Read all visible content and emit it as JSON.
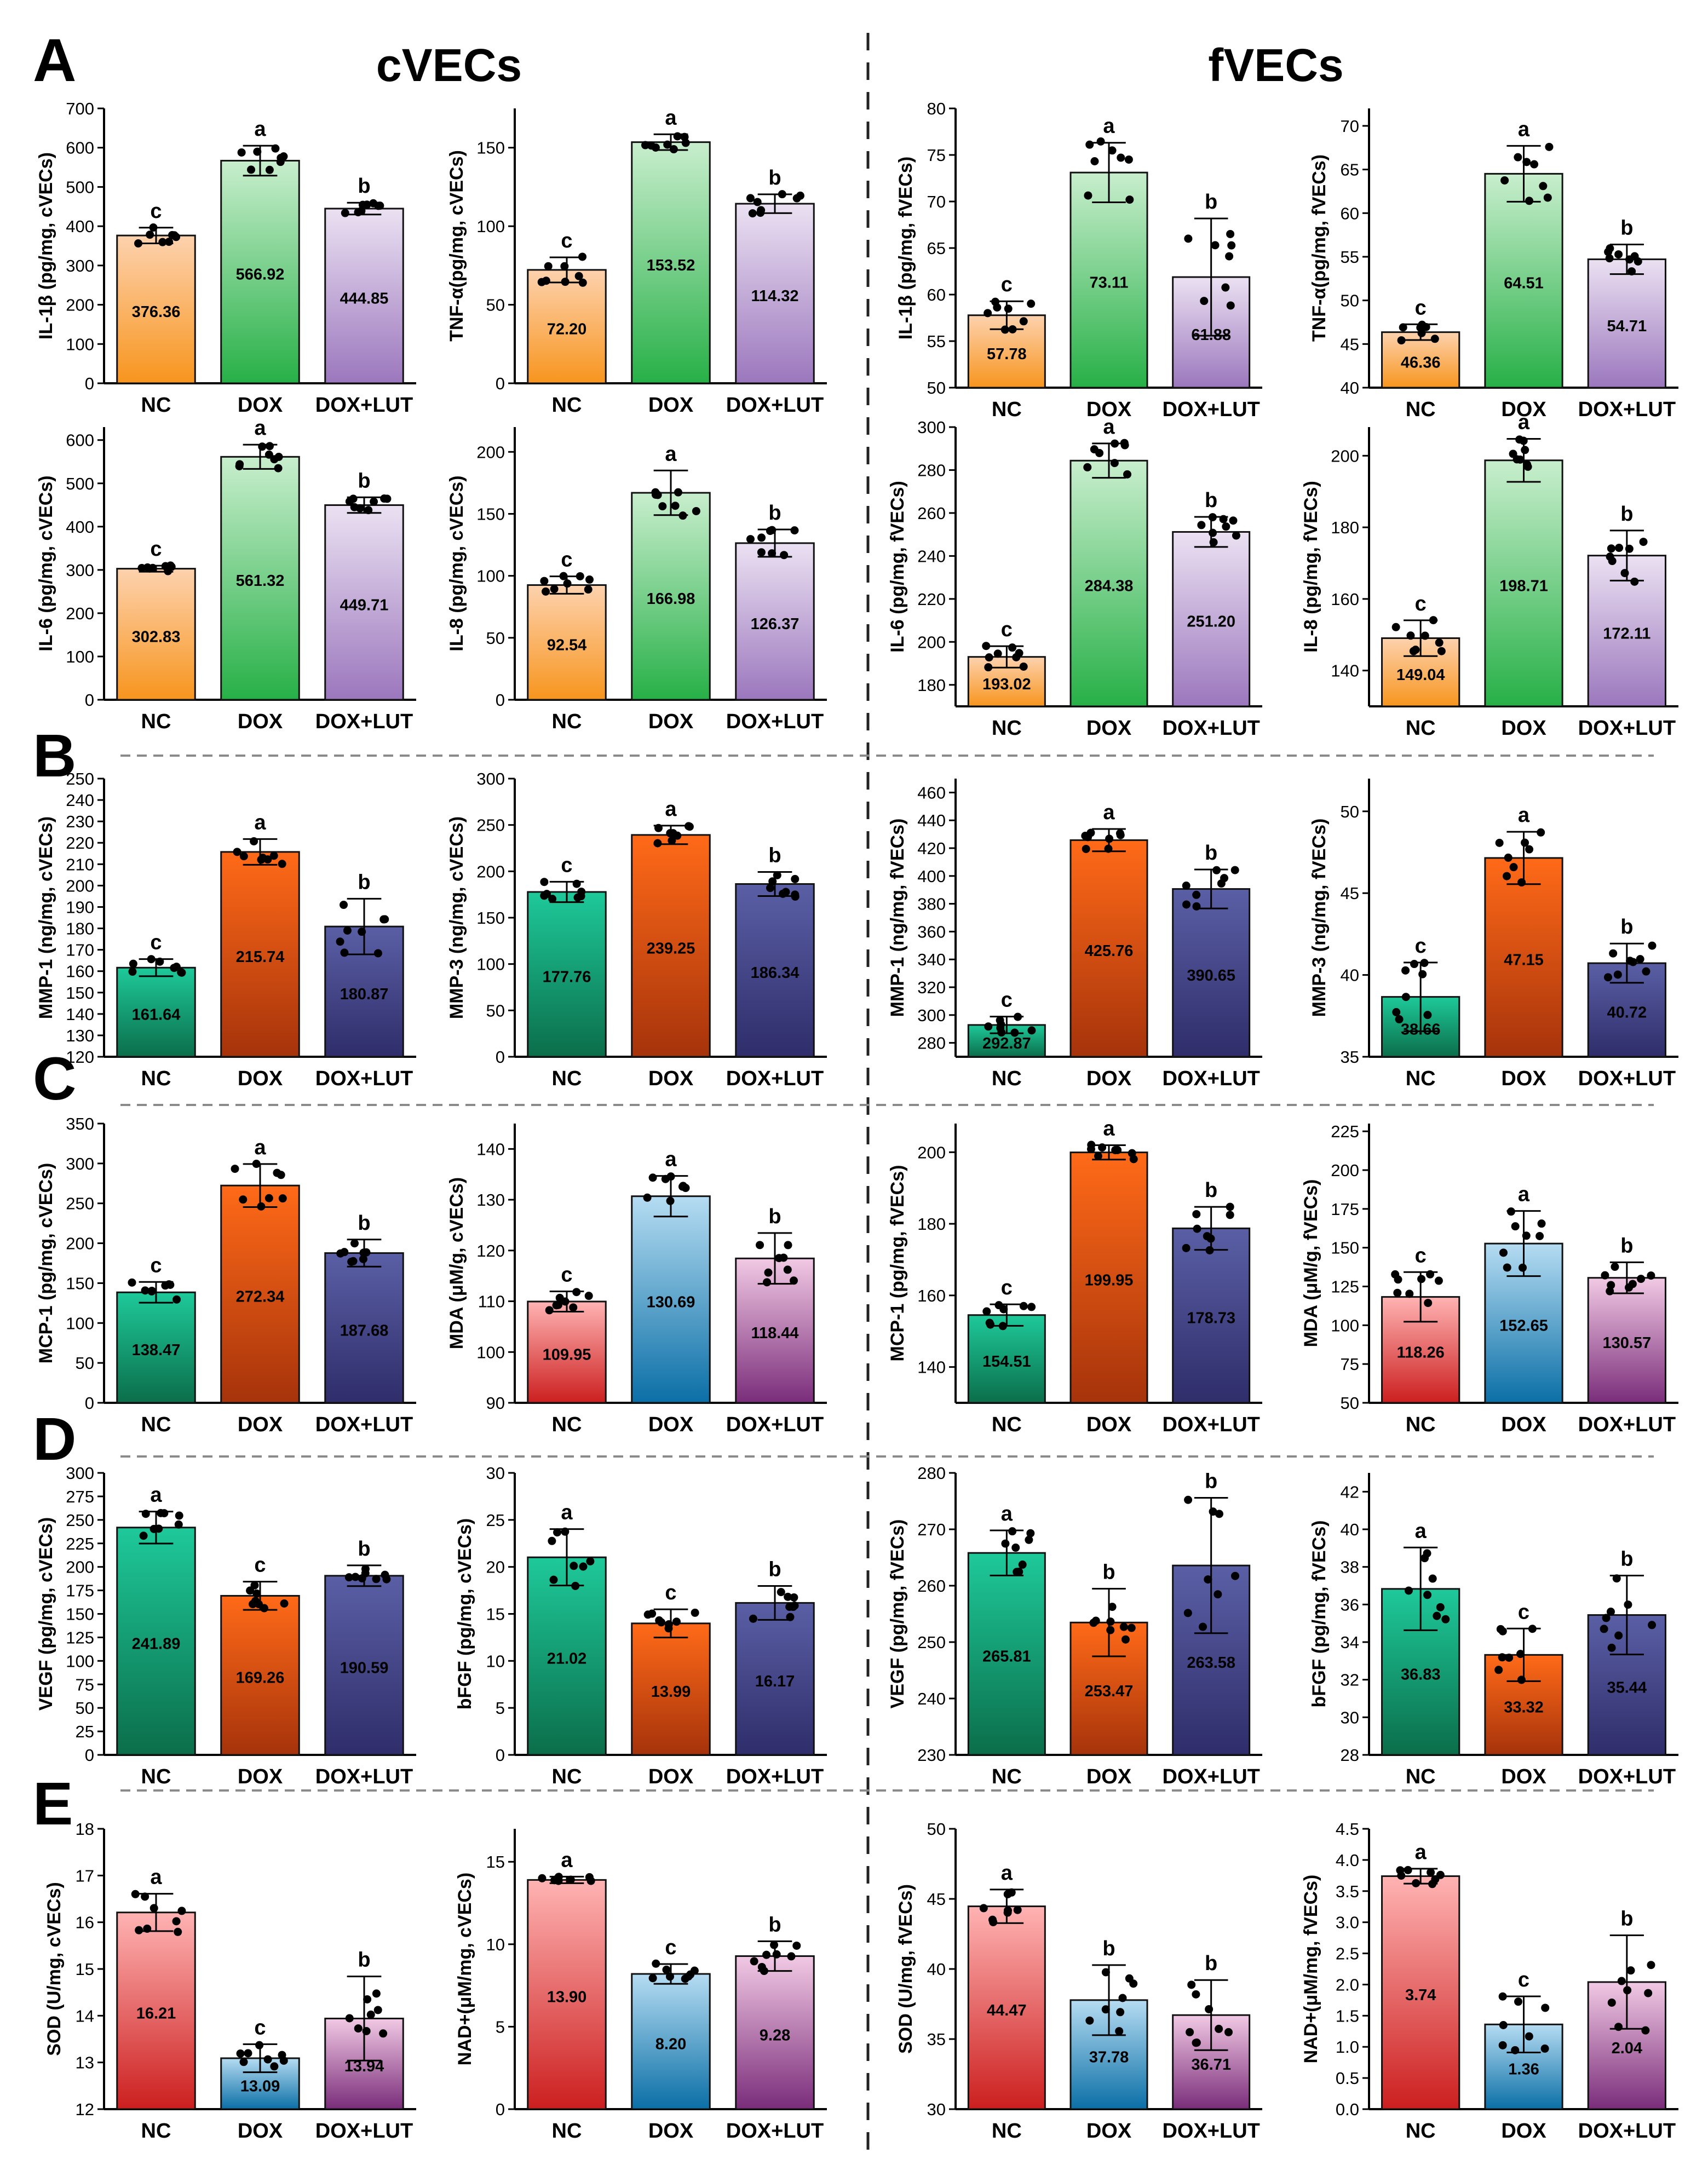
{
  "figure": {
    "sections": [
      "A",
      "B",
      "C",
      "D",
      "E"
    ],
    "groups": [
      "cVECs",
      "fVECs"
    ]
  },
  "colors": {
    "orange_light": "#fdd2ae",
    "orange": "#f7951e",
    "green_light": "#c8eecd",
    "green": "#27b047",
    "purple_light": "#ebe1f2",
    "purple": "#9b77bd",
    "teal_light": "#1ec99a",
    "teal": "#0b6e4a",
    "rust_light": "#ff6a18",
    "rust": "#a6330b",
    "navy_light": "#5a5fa5",
    "navy": "#2f2d6a",
    "pink_light": "#ffb3b3",
    "pink": "#cc1f1f",
    "blue_light": "#b5dcf2",
    "blue": "#0b6fa6",
    "mauve_light": "#f1c9e4",
    "mauve": "#7a2d7a"
  },
  "chart_data": [
    {
      "id": "A1",
      "type": "bar",
      "group": "cVECs",
      "ylabel": "IL-1β (pg/mg, cVECs)",
      "ylim": [
        0,
        700
      ],
      "ticks": [
        0,
        100,
        200,
        300,
        400,
        500,
        600,
        700
      ],
      "categories": [
        "NC",
        "DOX",
        "DOX+LUT"
      ],
      "values": [
        376.36,
        566.92,
        444.85
      ],
      "labels": [
        "376.36",
        "566.92",
        "444.85"
      ],
      "errors": [
        20,
        38,
        15
      ],
      "letters": [
        "c",
        "a",
        "b"
      ],
      "palette": "A"
    },
    {
      "id": "A2",
      "type": "bar",
      "group": "cVECs",
      "ylabel": "TNF-α(pg/mg, cVECs)",
      "ylim": [
        0,
        175
      ],
      "ticks": [
        0,
        50,
        100,
        150
      ],
      "categories": [
        "NC",
        "DOX",
        "DOX+LUT"
      ],
      "values": [
        72.2,
        153.52,
        114.32
      ],
      "labels": [
        "72.20",
        "153.52",
        "114.32"
      ],
      "errors": [
        8,
        5,
        6
      ],
      "letters": [
        "c",
        "a",
        "b"
      ],
      "palette": "A"
    },
    {
      "id": "A3",
      "type": "bar",
      "group": "fVECs",
      "ylabel": "IL-1β (pg/mg, fVECs)",
      "ylim": [
        50,
        80
      ],
      "ticks": [
        50,
        55,
        60,
        65,
        70,
        75,
        80
      ],
      "categories": [
        "NC",
        "DOX",
        "DOX+LUT"
      ],
      "values": [
        57.78,
        73.11,
        61.88
      ],
      "labels": [
        "57.78",
        "73.11",
        "61.88"
      ],
      "errors": [
        1.5,
        3.2,
        6.3
      ],
      "letters": [
        "c",
        "a",
        "b"
      ],
      "palette": "A"
    },
    {
      "id": "A4",
      "type": "bar",
      "group": "fVECs",
      "ylabel": "TNF-α(pg/mg, fVECs)",
      "ylim": [
        40,
        72
      ],
      "ticks": [
        40,
        45,
        50,
        55,
        60,
        65,
        70
      ],
      "categories": [
        "NC",
        "DOX",
        "DOX+LUT"
      ],
      "values": [
        46.36,
        64.51,
        54.71
      ],
      "labels": [
        "46.36",
        "64.51",
        "54.71"
      ],
      "errors": [
        0.9,
        3.2,
        1.7
      ],
      "letters": [
        "c",
        "a",
        "b"
      ],
      "palette": "A"
    },
    {
      "id": "A5",
      "type": "bar",
      "group": "cVECs",
      "ylabel": "IL-6 (pg/mg, cVECs)",
      "ylim": [
        0,
        630
      ],
      "ticks": [
        0,
        100,
        200,
        300,
        400,
        500,
        600
      ],
      "categories": [
        "NC",
        "DOX",
        "DOX+LUT"
      ],
      "values": [
        302.83,
        561.32,
        449.71
      ],
      "labels": [
        "302.83",
        "561.32",
        "449.71"
      ],
      "errors": [
        7,
        28,
        18
      ],
      "letters": [
        "c",
        "a",
        "b"
      ],
      "palette": "A"
    },
    {
      "id": "A6",
      "type": "bar",
      "group": "cVECs",
      "ylabel": "IL-8 (pg/mg, cVECs)",
      "ylim": [
        0,
        220
      ],
      "ticks": [
        0,
        50,
        100,
        150,
        200
      ],
      "categories": [
        "NC",
        "DOX",
        "DOX+LUT"
      ],
      "values": [
        92.54,
        166.98,
        126.37
      ],
      "labels": [
        "92.54",
        "166.98",
        "126.37"
      ],
      "errors": [
        7,
        18,
        11
      ],
      "letters": [
        "c",
        "a",
        "b"
      ],
      "palette": "A"
    },
    {
      "id": "A7",
      "type": "bar",
      "group": "fVECs",
      "ylabel": "IL-6 (pg/mg, fVECs)",
      "ylim": [
        170,
        300
      ],
      "ticks": [
        180,
        200,
        220,
        240,
        260,
        280,
        300
      ],
      "categories": [
        "NC",
        "DOX",
        "DOX+LUT"
      ],
      "values": [
        193.02,
        284.38,
        251.2
      ],
      "labels": [
        "193.02",
        "284.38",
        "251.20"
      ],
      "errors": [
        5,
        8,
        7
      ],
      "letters": [
        "c",
        "a",
        "b"
      ],
      "palette": "A"
    },
    {
      "id": "A8",
      "type": "bar",
      "group": "fVECs",
      "ylabel": "IL-8 (pg/mg, fVECs)",
      "ylim": [
        130,
        208
      ],
      "ticks": [
        140,
        160,
        180,
        200
      ],
      "categories": [
        "NC",
        "DOX",
        "DOX+LUT"
      ],
      "values": [
        149.04,
        198.71,
        172.11
      ],
      "labels": [
        "149.04",
        "198.71",
        "172.11"
      ],
      "errors": [
        5,
        6,
        7
      ],
      "letters": [
        "c",
        "a",
        "b"
      ],
      "palette": "A"
    },
    {
      "id": "B1",
      "type": "bar",
      "group": "cVECs",
      "ylabel": "MMP-1 (ng/mg, cVECs)",
      "ylim": [
        120,
        250
      ],
      "ticks": [
        120,
        130,
        140,
        150,
        160,
        170,
        180,
        190,
        200,
        210,
        220,
        230,
        240,
        250
      ],
      "categories": [
        "NC",
        "DOX",
        "DOX+LUT"
      ],
      "values": [
        161.64,
        215.74,
        180.87
      ],
      "labels": [
        "161.64",
        "215.74",
        "180.87"
      ],
      "errors": [
        4,
        6,
        13
      ],
      "letters": [
        "c",
        "a",
        "b"
      ],
      "palette": "B"
    },
    {
      "id": "B2",
      "type": "bar",
      "group": "cVECs",
      "ylabel": "MMP-3 (ng/mg, cVECs)",
      "ylim": [
        0,
        300
      ],
      "ticks": [
        0,
        50,
        100,
        150,
        200,
        250,
        300
      ],
      "categories": [
        "NC",
        "DOX",
        "DOX+LUT"
      ],
      "values": [
        177.76,
        239.25,
        186.34
      ],
      "labels": [
        "177.76",
        "239.25",
        "186.34"
      ],
      "errors": [
        11,
        10,
        13
      ],
      "letters": [
        "c",
        "a",
        "b"
      ],
      "palette": "B"
    },
    {
      "id": "B3",
      "type": "bar",
      "group": "fVECs",
      "ylabel": "MMP-1 (ng/mg, fVECs)",
      "ylim": [
        270,
        470
      ],
      "ticks": [
        280,
        300,
        320,
        340,
        360,
        380,
        400,
        420,
        440,
        460
      ],
      "categories": [
        "NC",
        "DOX",
        "DOX+LUT"
      ],
      "values": [
        292.87,
        425.76,
        390.65
      ],
      "labels": [
        "292.87",
        "425.76",
        "390.65"
      ],
      "errors": [
        6,
        8,
        14
      ],
      "letters": [
        "c",
        "a",
        "b"
      ],
      "palette": "B"
    },
    {
      "id": "B4",
      "type": "bar",
      "group": "fVECs",
      "ylabel": "MMP-3 (ng/mg, fVECs)",
      "ylim": [
        35,
        52
      ],
      "ticks": [
        35,
        40,
        45,
        50
      ],
      "categories": [
        "NC",
        "DOX",
        "DOX+LUT"
      ],
      "values": [
        38.66,
        47.15,
        40.72
      ],
      "labels": [
        "38.66",
        "47.15",
        "40.72"
      ],
      "errors": [
        2.1,
        1.6,
        1.2
      ],
      "letters": [
        "c",
        "a",
        "b"
      ],
      "palette": "B"
    },
    {
      "id": "C1",
      "type": "bar",
      "group": "cVECs",
      "ylabel": "MCP-1 (pg/mg, cVECs)",
      "ylim": [
        0,
        350
      ],
      "ticks": [
        0,
        50,
        100,
        150,
        200,
        250,
        300,
        350
      ],
      "categories": [
        "NC",
        "DOX",
        "DOX+LUT"
      ],
      "values": [
        138.47,
        272.34,
        187.68
      ],
      "labels": [
        "138.47",
        "272.34",
        "187.68"
      ],
      "errors": [
        13,
        27,
        17
      ],
      "letters": [
        "c",
        "a",
        "b"
      ],
      "palette": "B"
    },
    {
      "id": "C2",
      "type": "bar",
      "group": "cVECs",
      "ylabel": "MDA (μM/g, cVECs)",
      "ylim": [
        90,
        145
      ],
      "ticks": [
        90,
        100,
        110,
        120,
        130,
        140
      ],
      "categories": [
        "NC",
        "DOX",
        "DOX+LUT"
      ],
      "values": [
        109.95,
        130.69,
        118.44
      ],
      "labels": [
        "109.95",
        "130.69",
        "118.44"
      ],
      "errors": [
        2,
        4,
        5
      ],
      "letters": [
        "c",
        "a",
        "b"
      ],
      "palette": "C"
    },
    {
      "id": "C3",
      "type": "bar",
      "group": "fVECs",
      "ylabel": "MCP-1 (pg/mg, fVECs)",
      "ylim": [
        130,
        208
      ],
      "ticks": [
        140,
        160,
        180,
        200
      ],
      "categories": [
        "NC",
        "DOX",
        "DOX+LUT"
      ],
      "values": [
        154.51,
        199.95,
        178.73
      ],
      "labels": [
        "154.51",
        "199.95",
        "178.73"
      ],
      "errors": [
        3,
        2,
        6
      ],
      "letters": [
        "c",
        "a",
        "b"
      ],
      "palette": "B"
    },
    {
      "id": "C4",
      "type": "bar",
      "group": "fVECs",
      "ylabel": "MDA (μM/g, fVECs)",
      "ylim": [
        50,
        230
      ],
      "ticks": [
        50,
        75,
        100,
        125,
        150,
        175,
        200,
        225
      ],
      "categories": [
        "NC",
        "DOX",
        "DOX+LUT"
      ],
      "values": [
        118.26,
        152.65,
        130.57
      ],
      "labels": [
        "118.26",
        "152.65",
        "130.57"
      ],
      "errors": [
        16,
        21,
        10
      ],
      "letters": [
        "c",
        "a",
        "b"
      ],
      "palette": "C"
    },
    {
      "id": "D1",
      "type": "bar",
      "group": "cVECs",
      "ylabel": "VEGF (pg/mg, cVECs)",
      "ylim": [
        0,
        300
      ],
      "ticks": [
        0,
        25,
        50,
        75,
        100,
        125,
        150,
        175,
        200,
        225,
        250,
        275,
        300
      ],
      "categories": [
        "NC",
        "DOX",
        "DOX+LUT"
      ],
      "values": [
        241.89,
        169.26,
        190.59
      ],
      "labels": [
        "241.89",
        "169.26",
        "190.59"
      ],
      "errors": [
        17,
        15,
        11
      ],
      "letters": [
        "a",
        "c",
        "b"
      ],
      "palette": "B"
    },
    {
      "id": "D2",
      "type": "bar",
      "group": "cVECs",
      "ylabel": "bFGF (pg/mg, cVECs)",
      "ylim": [
        0,
        30
      ],
      "ticks": [
        0,
        5,
        10,
        15,
        20,
        25,
        30
      ],
      "categories": [
        "NC",
        "DOX",
        "DOX+LUT"
      ],
      "values": [
        21.02,
        13.99,
        16.17
      ],
      "labels": [
        "21.02",
        "13.99",
        "16.17"
      ],
      "errors": [
        3,
        1.5,
        1.8
      ],
      "letters": [
        "a",
        "c",
        "b"
      ],
      "palette": "B"
    },
    {
      "id": "D3",
      "type": "bar",
      "group": "fVECs",
      "ylabel": "VEGF (pg/mg, fVECs)",
      "ylim": [
        230,
        280
      ],
      "ticks": [
        230,
        240,
        250,
        260,
        270,
        280
      ],
      "categories": [
        "NC",
        "DOX",
        "DOX+LUT"
      ],
      "values": [
        265.81,
        253.47,
        263.58
      ],
      "labels": [
        "265.81",
        "253.47",
        "263.58"
      ],
      "errors": [
        4,
        6,
        12
      ],
      "letters": [
        "a",
        "b",
        "b"
      ],
      "palette": "B"
    },
    {
      "id": "D4",
      "type": "bar",
      "group": "fVECs",
      "ylabel": "bFGF (pg/mg, fVECs)",
      "ylim": [
        28,
        43
      ],
      "ticks": [
        28,
        30,
        32,
        34,
        36,
        38,
        40,
        42
      ],
      "categories": [
        "NC",
        "DOX",
        "DOX+LUT"
      ],
      "values": [
        36.83,
        33.32,
        35.44
      ],
      "labels": [
        "36.83",
        "33.32",
        "35.44"
      ],
      "errors": [
        2.2,
        1.4,
        2.1
      ],
      "letters": [
        "a",
        "c",
        "b"
      ],
      "palette": "B"
    },
    {
      "id": "E1",
      "type": "bar",
      "group": "cVECs",
      "ylabel": "SOD (U/mg, cVECs)",
      "ylim": [
        12,
        18
      ],
      "ticks": [
        12,
        13,
        14,
        15,
        16,
        17,
        18
      ],
      "categories": [
        "NC",
        "DOX",
        "DOX+LUT"
      ],
      "values": [
        16.21,
        13.09,
        13.94
      ],
      "labels": [
        "16.21",
        "13.09",
        "13.94"
      ],
      "errors": [
        0.4,
        0.3,
        0.9
      ],
      "letters": [
        "a",
        "c",
        "b"
      ],
      "palette": "C"
    },
    {
      "id": "E2",
      "type": "bar",
      "group": "cVECs",
      "ylabel": "NAD+(μM/mg, cVECs)",
      "ylim": [
        0,
        17
      ],
      "ticks": [
        0,
        5,
        10,
        15
      ],
      "categories": [
        "NC",
        "DOX",
        "DOX+LUT"
      ],
      "values": [
        13.9,
        8.2,
        9.28
      ],
      "labels": [
        "13.90",
        "8.20",
        "9.28"
      ],
      "errors": [
        0.2,
        0.6,
        0.9
      ],
      "letters": [
        "a",
        "c",
        "b"
      ],
      "palette": "C"
    },
    {
      "id": "E3",
      "type": "bar",
      "group": "fVECs",
      "ylabel": "SOD (U/mg, fVECs)",
      "ylim": [
        30,
        50
      ],
      "ticks": [
        30,
        35,
        40,
        45,
        50
      ],
      "categories": [
        "NC",
        "DOX",
        "DOX+LUT"
      ],
      "values": [
        44.47,
        37.78,
        36.71
      ],
      "labels": [
        "44.47",
        "37.78",
        "36.71"
      ],
      "errors": [
        1.2,
        2.5,
        2.5
      ],
      "letters": [
        "a",
        "b",
        "b"
      ],
      "palette": "C"
    },
    {
      "id": "E4",
      "type": "bar",
      "group": "fVECs",
      "ylabel": "NAD+(μM/mg, fVECs)",
      "ylim": [
        0,
        4.5
      ],
      "ticks": [
        0.0,
        0.5,
        1.0,
        1.5,
        2.0,
        2.5,
        3.0,
        3.5,
        4.0,
        4.5
      ],
      "tick_labels": [
        "0.0",
        "0.5",
        "1.0",
        "1.5",
        "2.0",
        "2.5",
        "3.0",
        "3.5",
        "4.0",
        "4.5"
      ],
      "categories": [
        "NC",
        "DOX",
        "DOX+LUT"
      ],
      "values": [
        3.74,
        1.36,
        2.04
      ],
      "labels": [
        "3.74",
        "1.36",
        "2.04"
      ],
      "errors": [
        0.12,
        0.45,
        0.75
      ],
      "letters": [
        "a",
        "c",
        "b"
      ],
      "palette": "C"
    }
  ]
}
